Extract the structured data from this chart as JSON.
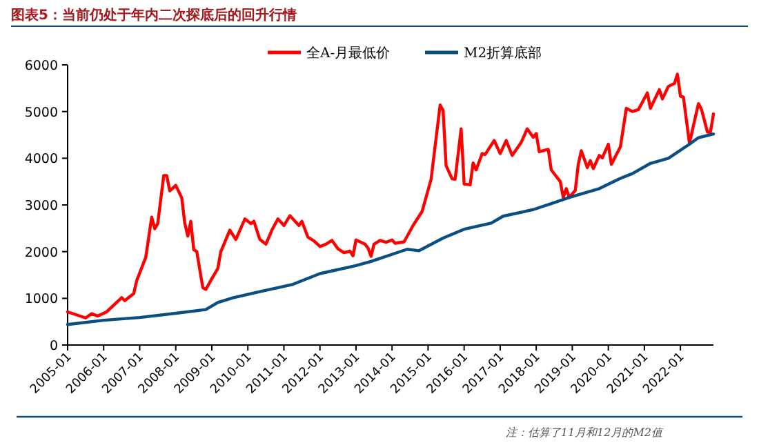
{
  "chart_data": {
    "type": "line",
    "title": "图表5：当前仍处于年内二次探底后的回升行情",
    "xlim": [
      "2005-01",
      "2022-12"
    ],
    "xticks": [
      "2005-01",
      "2006-01",
      "2007-01",
      "2008-01",
      "2009-01",
      "2010-01",
      "2011-01",
      "2012-01",
      "2013-01",
      "2014-01",
      "2015-01",
      "2016-01",
      "2017-01",
      "2018-01",
      "2019-01",
      "2020-01",
      "2021-01",
      "2022-01"
    ],
    "ylim": [
      0,
      6000
    ],
    "yticks": [
      0,
      1000,
      2000,
      3000,
      4000,
      5000,
      6000
    ],
    "legend": "top",
    "series": [
      {
        "name": "全A-月最低价",
        "color": "#ff0000",
        "x": [
          "2005-01",
          "2005-07",
          "2005-09",
          "2005-11",
          "2006-02",
          "2006-07",
          "2006-08",
          "2006-11",
          "2006-12",
          "2007-03",
          "2007-05",
          "2007-06",
          "2007-07",
          "2007-09",
          "2007-10",
          "2007-11",
          "2008-01",
          "2008-03",
          "2008-04",
          "2008-05",
          "2008-06",
          "2008-07",
          "2008-08",
          "2008-10",
          "2008-11",
          "2009-01",
          "2009-03",
          "2009-04",
          "2009-07",
          "2009-09",
          "2009-12",
          "2010-02",
          "2010-03",
          "2010-05",
          "2010-07",
          "2010-09",
          "2010-11",
          "2011-01",
          "2011-03",
          "2011-06",
          "2011-07",
          "2011-09",
          "2011-11",
          "2012-01",
          "2012-03",
          "2012-05",
          "2012-07",
          "2012-09",
          "2012-11",
          "2012-12",
          "2013-01",
          "2013-04",
          "2013-05",
          "2013-06",
          "2013-07",
          "2013-09",
          "2013-11",
          "2014-01",
          "2014-02",
          "2014-05",
          "2014-08",
          "2014-11",
          "2015-02",
          "2015-05",
          "2015-06",
          "2015-07",
          "2015-09",
          "2015-10",
          "2015-12",
          "2016-01",
          "2016-03",
          "2016-04",
          "2016-05",
          "2016-07",
          "2016-08",
          "2016-11",
          "2017-01",
          "2017-03",
          "2017-05",
          "2017-08",
          "2017-10",
          "2017-12",
          "2018-01",
          "2018-02",
          "2018-05",
          "2018-06",
          "2018-09",
          "2018-10",
          "2018-11",
          "2018-12",
          "2019-02",
          "2019-03",
          "2019-04",
          "2019-06",
          "2019-07",
          "2019-08",
          "2019-10",
          "2019-11",
          "2020-01",
          "2020-02",
          "2020-05",
          "2020-07",
          "2020-09",
          "2020-11",
          "2021-02",
          "2021-03",
          "2021-06",
          "2021-07",
          "2021-09",
          "2021-11",
          "2021-12",
          "2022-01",
          "2022-02",
          "2022-04",
          "2022-07",
          "2022-08",
          "2022-10",
          "2022-11",
          "2022-12"
        ],
        "values": [
          710,
          580,
          670,
          620,
          710,
          1015,
          950,
          1100,
          1380,
          1875,
          2740,
          2490,
          2600,
          3630,
          3630,
          3300,
          3420,
          3150,
          2610,
          2330,
          2650,
          2040,
          2000,
          1230,
          1190,
          1420,
          1640,
          2000,
          2460,
          2260,
          2700,
          2600,
          2650,
          2260,
          2160,
          2460,
          2700,
          2560,
          2770,
          2560,
          2650,
          2310,
          2230,
          2110,
          2160,
          2240,
          2060,
          1980,
          2010,
          1910,
          2250,
          2160,
          2080,
          1900,
          2160,
          2240,
          2200,
          2250,
          2180,
          2210,
          2560,
          2860,
          3550,
          5140,
          5020,
          3840,
          3560,
          3550,
          4630,
          3450,
          3430,
          3900,
          3750,
          4100,
          4080,
          4380,
          4100,
          4380,
          4060,
          4340,
          4630,
          4450,
          4530,
          4140,
          4190,
          3750,
          3500,
          3160,
          3350,
          3160,
          3310,
          3870,
          4160,
          3800,
          3950,
          3780,
          4060,
          4010,
          4300,
          3870,
          4240,
          5070,
          5000,
          5040,
          5400,
          5070,
          5470,
          5270,
          5540,
          5600,
          5800,
          5330,
          5310,
          4320,
          5170,
          5050,
          4560,
          4560,
          4950
        ]
      },
      {
        "name": "M2折算底部",
        "color": "#0b4f82",
        "x": [
          "2005-01",
          "2006-01",
          "2007-01",
          "2008-01",
          "2008-11",
          "2009-03",
          "2009-08",
          "2010-04",
          "2011-04",
          "2012-01",
          "2013-01",
          "2013-06",
          "2014-06",
          "2014-10",
          "2015-06",
          "2016-01",
          "2016-10",
          "2017-02",
          "2017-12",
          "2018-07",
          "2018-12",
          "2019-10",
          "2020-05",
          "2020-09",
          "2021-03",
          "2021-09",
          "2022-04",
          "2022-07",
          "2022-12"
        ],
        "values": [
          440,
          530,
          590,
          680,
          760,
          910,
          1010,
          1130,
          1300,
          1530,
          1700,
          1790,
          2050,
          2020,
          2290,
          2480,
          2610,
          2760,
          2900,
          3050,
          3160,
          3350,
          3570,
          3670,
          3890,
          4000,
          4300,
          4440,
          4520
        ]
      }
    ],
    "annotations": [
      "注：估算了11月和12月的M2值"
    ]
  }
}
